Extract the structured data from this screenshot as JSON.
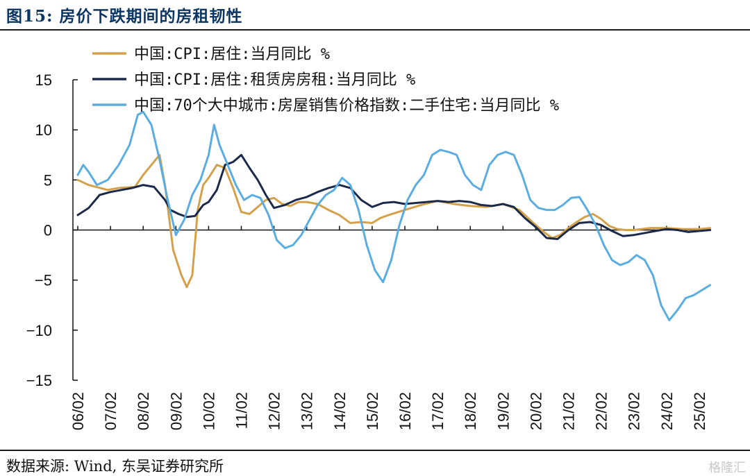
{
  "figure": {
    "title": "图15: 房价下跌期间的房租韧性",
    "source": "数据来源: Wind, 东吴证券研究所",
    "watermark": "格隆汇"
  },
  "chart_data": {
    "type": "line",
    "title": "",
    "xlabel": "",
    "ylabel": "",
    "ylim": [
      -15,
      15
    ],
    "yticks": [
      -15,
      -10,
      -5,
      0,
      5,
      10,
      15
    ],
    "x_tick_labels": [
      "06/02",
      "07/02",
      "08/02",
      "09/02",
      "10/02",
      "11/02",
      "12/02",
      "13/02",
      "14/02",
      "15/02",
      "16/02",
      "17/02",
      "18/02",
      "19/02",
      "20/02",
      "21/02",
      "22/02",
      "23/02",
      "24/02",
      "25/02"
    ],
    "grid": false,
    "legend_position": "top",
    "series": [
      {
        "name": "中国:CPI:居住:当月同比 %",
        "color": "#d4a14a",
        "x": [
          "2006-02",
          "2006-06",
          "2007-01",
          "2007-05",
          "2007-11",
          "2008-02",
          "2008-05",
          "2008-08",
          "2008-10",
          "2009-01",
          "2009-04",
          "2009-06",
          "2009-08",
          "2009-10",
          "2009-12",
          "2010-02",
          "2010-05",
          "2010-08",
          "2010-11",
          "2011-02",
          "2011-05",
          "2011-08",
          "2011-11",
          "2012-02",
          "2012-05",
          "2012-08",
          "2012-11",
          "2013-02",
          "2013-06",
          "2013-10",
          "2014-02",
          "2014-06",
          "2014-10",
          "2015-02",
          "2015-05",
          "2015-08",
          "2016-02",
          "2016-08",
          "2017-02",
          "2017-08",
          "2018-02",
          "2018-08",
          "2019-02",
          "2019-08",
          "2020-02",
          "2020-05",
          "2020-08",
          "2020-11",
          "2021-02",
          "2021-05",
          "2021-08",
          "2021-11",
          "2022-02",
          "2022-05",
          "2022-08",
          "2022-11",
          "2023-02",
          "2023-08",
          "2024-02",
          "2024-08",
          "2025-02",
          "2025-06"
        ],
        "values": [
          5.0,
          4.5,
          4.0,
          4.2,
          4.3,
          5.5,
          6.5,
          7.5,
          4.5,
          -2.0,
          -4.5,
          -5.7,
          -4.5,
          2.0,
          4.5,
          5.2,
          6.5,
          6.2,
          4.2,
          1.8,
          1.6,
          2.3,
          3.0,
          3.2,
          2.6,
          2.4,
          2.8,
          2.8,
          2.6,
          2.0,
          1.5,
          0.7,
          0.8,
          0.7,
          1.2,
          1.5,
          2.0,
          2.5,
          2.9,
          2.6,
          2.4,
          2.3,
          2.6,
          2.0,
          0.5,
          -0.2,
          -0.8,
          -0.5,
          0.2,
          0.8,
          1.3,
          1.6,
          1.1,
          0.4,
          0.1,
          0.0,
          0.0,
          0.2,
          0.2,
          0.1,
          0.1,
          0.2
        ]
      },
      {
        "name": "中国:CPI:居住:租赁房房租:当月同比 %",
        "color": "#1c2a4a",
        "x": [
          "2006-02",
          "2006-06",
          "2006-10",
          "2007-02",
          "2007-06",
          "2007-10",
          "2008-02",
          "2008-06",
          "2008-10",
          "2008-12",
          "2009-03",
          "2009-06",
          "2009-09",
          "2009-12",
          "2010-02",
          "2010-05",
          "2010-08",
          "2010-11",
          "2011-02",
          "2011-05",
          "2011-08",
          "2011-11",
          "2012-02",
          "2012-06",
          "2012-10",
          "2013-02",
          "2013-06",
          "2013-10",
          "2014-02",
          "2014-06",
          "2014-10",
          "2015-02",
          "2015-06",
          "2015-10",
          "2016-02",
          "2016-06",
          "2016-10",
          "2017-02",
          "2017-06",
          "2017-10",
          "2018-02",
          "2018-06",
          "2018-10",
          "2019-02",
          "2019-06",
          "2019-10",
          "2020-02",
          "2020-06",
          "2020-10",
          "2021-02",
          "2021-06",
          "2021-10",
          "2022-02",
          "2022-06",
          "2022-10",
          "2023-02",
          "2023-06",
          "2023-10",
          "2024-02",
          "2024-06",
          "2024-10",
          "2025-02",
          "2025-06"
        ],
        "values": [
          1.5,
          2.2,
          3.5,
          3.8,
          4.0,
          4.2,
          4.5,
          4.3,
          3.0,
          2.0,
          1.6,
          1.3,
          1.4,
          2.5,
          2.8,
          4.0,
          6.5,
          6.8,
          7.5,
          6.2,
          5.0,
          3.5,
          2.2,
          2.5,
          3.0,
          3.3,
          3.8,
          4.2,
          4.5,
          4.2,
          3.0,
          2.3,
          2.7,
          2.8,
          2.6,
          2.7,
          2.8,
          2.9,
          2.8,
          2.9,
          2.8,
          2.5,
          2.4,
          2.6,
          2.3,
          1.2,
          0.3,
          -0.8,
          -0.9,
          0.0,
          0.7,
          0.8,
          0.5,
          -0.1,
          -0.6,
          -0.5,
          -0.3,
          -0.1,
          0.1,
          0.0,
          -0.2,
          -0.1,
          0.0
        ]
      },
      {
        "name": "中国:70个大中城市:房屋销售价格指数:二手住宅:当月同比 %",
        "color": "#5bade0",
        "x": [
          "2006-02",
          "2006-04",
          "2006-06",
          "2006-09",
          "2007-01",
          "2007-05",
          "2007-09",
          "2007-12",
          "2008-02",
          "2008-05",
          "2008-08",
          "2008-11",
          "2009-02",
          "2009-05",
          "2009-08",
          "2009-11",
          "2010-02",
          "2010-04",
          "2010-06",
          "2010-09",
          "2010-12",
          "2011-03",
          "2011-06",
          "2011-09",
          "2011-12",
          "2012-03",
          "2012-06",
          "2012-09",
          "2012-12",
          "2013-03",
          "2013-06",
          "2013-09",
          "2013-12",
          "2014-03",
          "2014-06",
          "2014-09",
          "2014-12",
          "2015-03",
          "2015-06",
          "2015-09",
          "2015-12",
          "2016-03",
          "2016-06",
          "2016-09",
          "2016-12",
          "2017-03",
          "2017-06",
          "2017-09",
          "2017-12",
          "2018-03",
          "2018-06",
          "2018-09",
          "2018-12",
          "2019-03",
          "2019-06",
          "2019-09",
          "2019-12",
          "2020-03",
          "2020-06",
          "2020-09",
          "2020-12",
          "2021-03",
          "2021-06",
          "2021-09",
          "2021-12",
          "2022-03",
          "2022-06",
          "2022-09",
          "2022-12",
          "2023-03",
          "2023-06",
          "2023-09",
          "2023-12",
          "2024-03",
          "2024-06",
          "2024-09",
          "2024-12",
          "2025-03",
          "2025-06"
        ],
        "values": [
          5.5,
          6.5,
          5.8,
          4.5,
          5.0,
          6.5,
          8.5,
          11.5,
          11.8,
          10.5,
          7.0,
          3.0,
          -0.5,
          1.0,
          3.5,
          5.0,
          7.5,
          10.5,
          8.5,
          6.5,
          4.5,
          3.0,
          3.5,
          3.2,
          1.5,
          -1.0,
          -1.8,
          -1.5,
          -0.5,
          1.0,
          2.5,
          3.5,
          4.0,
          5.2,
          4.5,
          2.0,
          -1.5,
          -4.0,
          -5.2,
          -3.0,
          0.5,
          3.0,
          4.5,
          5.5,
          7.5,
          8.0,
          7.8,
          7.5,
          5.5,
          4.5,
          4.0,
          6.5,
          7.5,
          7.8,
          7.5,
          5.5,
          3.0,
          2.2,
          2.0,
          2.0,
          2.5,
          3.2,
          3.3,
          2.0,
          0.5,
          -1.5,
          -3.0,
          -3.5,
          -3.2,
          -2.5,
          -3.0,
          -4.5,
          -7.5,
          -9.0,
          -8.0,
          -6.8,
          -6.5,
          -6.0,
          -5.5
        ]
      }
    ]
  }
}
